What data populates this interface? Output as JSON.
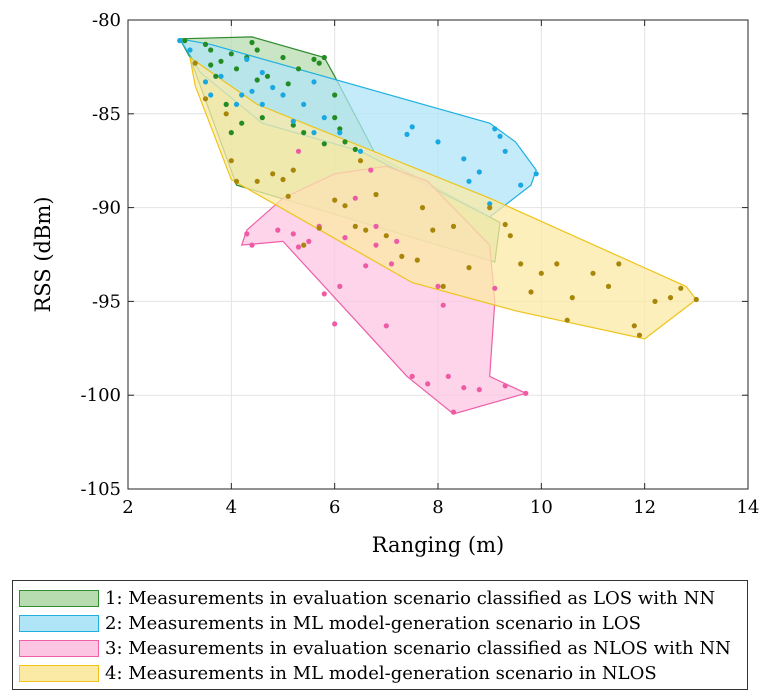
{
  "chart_data": {
    "type": "scatter",
    "xlabel": "Ranging (m)",
    "ylabel": "RSS (dBm)",
    "xlim": [
      2,
      14
    ],
    "ylim": [
      -105,
      -80
    ],
    "xticks": [
      2,
      4,
      6,
      8,
      10,
      12,
      14
    ],
    "yticks": [
      -80,
      -85,
      -90,
      -95,
      -100,
      -105
    ],
    "xtick_labels": [
      "2",
      "4",
      "6",
      "8",
      "10",
      "12",
      "14"
    ],
    "ytick_labels": [
      "-80",
      "-85",
      "-90",
      "-95",
      "-100",
      "-105"
    ],
    "grid": true,
    "legend_position": "below",
    "series": [
      {
        "name": "1: Measurements in evaluation scenario classified as LOS with NN",
        "fill": "#b7dcb0",
        "edge": "#2e8b2e",
        "marker": "#228b22",
        "hull": [
          [
            3.0,
            -81.0
          ],
          [
            4.4,
            -80.9
          ],
          [
            5.8,
            -82.0
          ],
          [
            6.0,
            -83.0
          ],
          [
            6.8,
            -87.2
          ],
          [
            9.2,
            -90.8
          ],
          [
            9.1,
            -92.9
          ],
          [
            4.1,
            -88.8
          ],
          [
            3.2,
            -82.0
          ]
        ],
        "points": [
          [
            3.1,
            -81.1
          ],
          [
            3.5,
            -81.3
          ],
          [
            3.6,
            -81.6
          ],
          [
            3.6,
            -82.4
          ],
          [
            3.7,
            -83.0
          ],
          [
            3.8,
            -82.2
          ],
          [
            4.0,
            -81.8
          ],
          [
            4.1,
            -82.6
          ],
          [
            4.3,
            -82.0
          ],
          [
            4.4,
            -81.2
          ],
          [
            4.5,
            -81.6
          ],
          [
            4.5,
            -83.2
          ],
          [
            4.7,
            -83.0
          ],
          [
            5.0,
            -82.0
          ],
          [
            5.1,
            -83.4
          ],
          [
            5.3,
            -82.6
          ],
          [
            5.6,
            -82.1
          ],
          [
            5.7,
            -82.3
          ],
          [
            5.8,
            -82.0
          ],
          [
            6.0,
            -84.0
          ],
          [
            6.0,
            -85.2
          ],
          [
            6.1,
            -85.8
          ],
          [
            6.2,
            -86.5
          ],
          [
            6.4,
            -86.9
          ],
          [
            4.0,
            -86.0
          ],
          [
            4.2,
            -85.5
          ],
          [
            4.6,
            -85.2
          ],
          [
            5.2,
            -85.6
          ],
          [
            5.4,
            -86.0
          ],
          [
            5.8,
            -86.6
          ],
          [
            3.9,
            -84.5
          ]
        ]
      },
      {
        "name": "2: Measurements in ML model-generation scenario in LOS",
        "fill": "#b0e4f7",
        "edge": "#20b0e0",
        "marker": "#1aa8e0",
        "hull": [
          [
            3.0,
            -81.0
          ],
          [
            3.6,
            -81.3
          ],
          [
            9.0,
            -85.5
          ],
          [
            9.5,
            -86.5
          ],
          [
            9.9,
            -88.0
          ],
          [
            9.8,
            -88.8
          ],
          [
            9.0,
            -90.5
          ],
          [
            6.5,
            -87.0
          ],
          [
            4.6,
            -85.5
          ],
          [
            3.4,
            -82.8
          ]
        ],
        "points": [
          [
            3.0,
            -81.1
          ],
          [
            3.2,
            -81.6
          ],
          [
            3.5,
            -83.3
          ],
          [
            3.6,
            -84.0
          ],
          [
            3.8,
            -83.0
          ],
          [
            4.1,
            -84.5
          ],
          [
            4.2,
            -84.0
          ],
          [
            4.3,
            -82.1
          ],
          [
            4.4,
            -83.8
          ],
          [
            4.6,
            -82.8
          ],
          [
            4.6,
            -84.5
          ],
          [
            4.8,
            -83.6
          ],
          [
            5.0,
            -84.0
          ],
          [
            5.2,
            -85.4
          ],
          [
            5.4,
            -84.5
          ],
          [
            5.6,
            -83.3
          ],
          [
            5.6,
            -86.0
          ],
          [
            5.8,
            -85.2
          ],
          [
            6.1,
            -86.0
          ],
          [
            6.5,
            -87.0
          ],
          [
            7.4,
            -86.1
          ],
          [
            7.5,
            -85.7
          ],
          [
            8.0,
            -86.5
          ],
          [
            8.5,
            -87.4
          ],
          [
            8.6,
            -88.6
          ],
          [
            8.8,
            -88.1
          ],
          [
            9.1,
            -85.8
          ],
          [
            9.2,
            -86.2
          ],
          [
            9.3,
            -87.0
          ],
          [
            9.9,
            -88.2
          ],
          [
            9.0,
            -89.8
          ],
          [
            9.6,
            -88.8
          ]
        ]
      },
      {
        "name": "3: Measurements in evaluation scenario classified as NLOS with NN",
        "fill": "#fcc6e3",
        "edge": "#ee5fa8",
        "marker": "#ee5ba5",
        "hull": [
          [
            4.3,
            -91.2
          ],
          [
            5.0,
            -89.5
          ],
          [
            6.0,
            -88.2
          ],
          [
            7.0,
            -87.8
          ],
          [
            7.8,
            -88.6
          ],
          [
            9.0,
            -92.0
          ],
          [
            9.1,
            -95.0
          ],
          [
            9.0,
            -99.0
          ],
          [
            9.7,
            -99.9
          ],
          [
            8.3,
            -101.0
          ],
          [
            7.4,
            -99.0
          ],
          [
            5.0,
            -91.8
          ],
          [
            4.2,
            -92.0
          ]
        ],
        "points": [
          [
            4.3,
            -91.4
          ],
          [
            4.4,
            -92.0
          ],
          [
            4.9,
            -91.2
          ],
          [
            5.2,
            -91.4
          ],
          [
            5.3,
            -92.1
          ],
          [
            5.5,
            -91.8
          ],
          [
            5.7,
            -91.0
          ],
          [
            5.8,
            -94.6
          ],
          [
            6.0,
            -96.2
          ],
          [
            6.1,
            -94.2
          ],
          [
            6.2,
            -91.6
          ],
          [
            6.6,
            -93.1
          ],
          [
            6.8,
            -91.0
          ],
          [
            6.8,
            -92.0
          ],
          [
            7.0,
            -96.3
          ],
          [
            7.1,
            -93.0
          ],
          [
            6.4,
            -89.5
          ],
          [
            6.7,
            -88.0
          ],
          [
            5.3,
            -87.0
          ],
          [
            7.2,
            -91.8
          ],
          [
            7.5,
            -99.0
          ],
          [
            7.8,
            -99.4
          ],
          [
            8.0,
            -94.2
          ],
          [
            8.1,
            -95.2
          ],
          [
            8.2,
            -99.0
          ],
          [
            8.3,
            -100.9
          ],
          [
            8.5,
            -99.6
          ],
          [
            8.8,
            -99.7
          ],
          [
            9.1,
            -94.3
          ],
          [
            9.3,
            -99.5
          ],
          [
            9.7,
            -99.9
          ]
        ]
      },
      {
        "name": "4: Measurements in ML model-generation scenario in NLOS",
        "fill": "#fbeaa6",
        "edge": "#eec41a",
        "marker": "#a8860a",
        "hull": [
          [
            3.2,
            -82.0
          ],
          [
            4.5,
            -84.5
          ],
          [
            9.0,
            -89.5
          ],
          [
            12.8,
            -94.2
          ],
          [
            13.0,
            -94.9
          ],
          [
            12.0,
            -97.0
          ],
          [
            9.5,
            -95.5
          ],
          [
            7.5,
            -94.0
          ],
          [
            4.0,
            -88.5
          ],
          [
            3.3,
            -83.5
          ]
        ],
        "points": [
          [
            3.3,
            -82.3
          ],
          [
            3.5,
            -84.2
          ],
          [
            3.9,
            -85.0
          ],
          [
            4.0,
            -87.5
          ],
          [
            4.1,
            -88.6
          ],
          [
            4.5,
            -88.6
          ],
          [
            4.8,
            -88.2
          ],
          [
            5.0,
            -88.5
          ],
          [
            5.1,
            -89.4
          ],
          [
            5.2,
            -88.0
          ],
          [
            5.4,
            -92.0
          ],
          [
            5.7,
            -91.1
          ],
          [
            6.0,
            -89.6
          ],
          [
            6.2,
            -89.9
          ],
          [
            6.4,
            -91.0
          ],
          [
            6.5,
            -87.5
          ],
          [
            6.6,
            -91.2
          ],
          [
            6.8,
            -89.3
          ],
          [
            7.0,
            -91.5
          ],
          [
            7.3,
            -92.6
          ],
          [
            7.6,
            -92.8
          ],
          [
            7.7,
            -90.0
          ],
          [
            7.9,
            -91.2
          ],
          [
            8.1,
            -94.2
          ],
          [
            8.3,
            -91.0
          ],
          [
            8.6,
            -93.2
          ],
          [
            9.0,
            -90.0
          ],
          [
            9.3,
            -90.9
          ],
          [
            9.4,
            -91.5
          ],
          [
            9.6,
            -93.0
          ],
          [
            9.8,
            -94.5
          ],
          [
            10.0,
            -93.5
          ],
          [
            10.3,
            -93.0
          ],
          [
            10.5,
            -96.0
          ],
          [
            10.6,
            -94.8
          ],
          [
            11.0,
            -93.5
          ],
          [
            11.3,
            -94.2
          ],
          [
            11.5,
            -93.0
          ],
          [
            11.8,
            -96.3
          ],
          [
            11.9,
            -96.8
          ],
          [
            12.2,
            -95.0
          ],
          [
            12.5,
            -94.8
          ],
          [
            12.7,
            -94.3
          ],
          [
            13.0,
            -94.9
          ]
        ]
      }
    ]
  }
}
